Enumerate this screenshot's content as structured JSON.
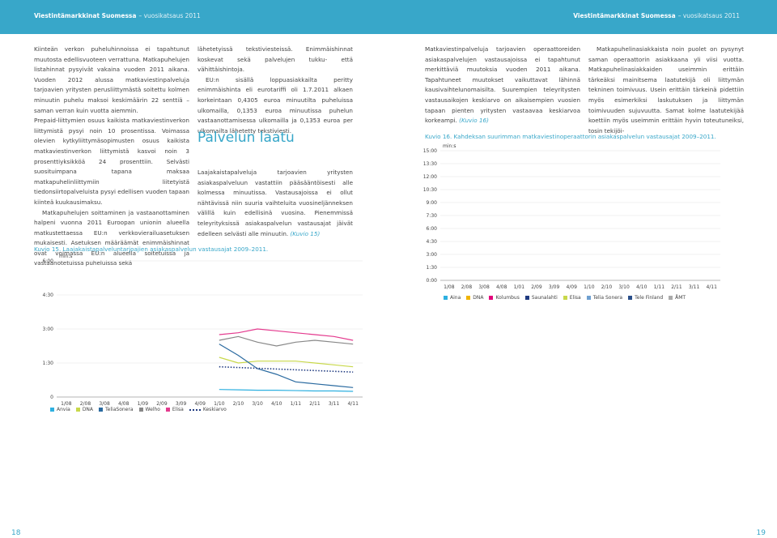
{
  "header": {
    "left_title": "Viestintämarkkinat Suomessa",
    "left_sub": "– vuosikatsaus 2011",
    "right_title": "Viestintämarkkinat Suomessa",
    "right_sub": "– vuosikatsaus 2011"
  },
  "page_left": "18",
  "page_right": "19",
  "col1": [
    "Kiinteän verkon puheluhinnoissa ei tapahtunut muutosta edellisvuoteen verrattuna. Matkapuhelujen listahinnat pysyivät vakaina vuoden 2011 aikana. Vuoden 2012 alussa matkaviestinpalveluja tarjoavien yritysten perusliittymästä soitettu kolmen minuutin puhelu maksoi keskimäärin 22 senttiä – saman verran kuin vuotta aiemmin.",
    "Prepaid-liittymien osuus kaikista matkaviestinverkon liittymistä pysyi noin 10 prosentissa. Voimassa olevien kytkyliittymäsopimusten osuus kaikista matkaviestinverkon liittymistä kasvoi noin 3 prosenttiyksikköä 24 prosenttiin. Selvästi suosituimpana tapana maksaa matkapuhelinliittymiin liitetyistä tiedonsiirtopalveluista pysyi edellisen vuoden tapaan kiinteä kuukausimaksu.",
    "Matkapuhelujen soittaminen ja vastaanottaminen halpeni vuonna 2011 Euroopan unionin alueella matkustettaessa EU:n verkkovierailuasetuksen mukaisesti. Asetuksen määräämät enimmäishinnat ovat voimassa EU:n alueella soitetuissa ja vastaanotetuissa puheluissa sekä"
  ],
  "col2": {
    "p1": "lähetetyissä tekstiviesteissä. Enimmäishinnat koskevat sekä palvelujen tukku- että vähittäishintoja.",
    "p2": "EU:n sisällä loppuasiakkailta peritty enimmäishinta eli eurotariffi oli 1.7.2011 alkaen korkeintaan 0,4305 euroa minuutilta puheluissa ulkomailla, 0,1353 euroa minuutissa puhelun vastaanottamisessa ulkomailla ja 0,1353 euroa per ulkomailta lähetetty tekstiviesti.",
    "section_title": "Palvelun laatu",
    "p3": "Laajakaistapalveluja tarjoavien yritysten asiakaspalveluun vastattiin pääsääntöisesti alle kolmessa minuutissa. Vastausajoissa ei ollut nähtävissä niin suuria vaihteluita vuosineljänneksen välillä kuin edellisinä vuosina. Pienemmissä teleyrityksissä asiakaspalvelun vastausajat jäivät edelleen selvästi alle minuutin.",
    "p3_ref": "(Kuvio 15)"
  },
  "col3": {
    "p1": "Matkaviestinpalveluja tarjoavien operaattoreiden asiakaspalvelujen vastausajoissa ei tapahtunut merkittäviä muutoksia vuoden 2011 aikana. Tapahtuneet muutokset vaikuttavat lähinnä kausivaihtelunomaisilta. Suurempien teleyritysten vastausaikojen keskiarvo on aikaisempien vuosien tapaan pienten yritysten vastaavaa keskiarvoa korkeampi.",
    "p1_ref": "(Kuvio 16)"
  },
  "col4": {
    "p1": "Matkapuhelinasiakkaista noin puolet on pysynyt saman operaattorin asiakkaana yli viisi vuotta. Matkapuhelinasiakkaiden useimmin erittäin tärkeäksi mainitsema laatutekijä oli liittymän tekninen toimivuus. Usein erittäin tärkeinä pidettiin myös esimerkiksi laskutuksen ja liittymän toimivuuden sujuvuutta. Samat kolme laatutekijää koettiin myös useimmin erittäin hyvin toteutuneiksi, tosin tekijöi-"
  },
  "fig15_caption": "Kuvio 15. Laajakaistapalveluntarjoajien asiakaspalvelun vastausajat 2009–2011.",
  "fig16_caption": "Kuvio 16. Kahdeksan suurimman matkaviestinoperaattorin asiakaspalvelun vastausajat 2009–2011.",
  "chart_data": [
    {
      "type": "line",
      "title": "",
      "ylabel": "min:s",
      "yticks": [
        "0",
        "1:30",
        "3:00",
        "4:30",
        "6:00"
      ],
      "ylim": [
        0,
        360
      ],
      "categories": [
        "1/08",
        "2/08",
        "3/08",
        "4/08",
        "1/09",
        "2/09",
        "3/09",
        "4/09",
        "1/10",
        "2/10",
        "3/10",
        "4/10",
        "1/11",
        "2/11",
        "3/11",
        "4/11"
      ],
      "series": [
        {
          "name": "Anvia",
          "color": "#2eb0e0",
          "style": "solid",
          "values": [
            null,
            null,
            null,
            null,
            null,
            null,
            null,
            null,
            20,
            19,
            18,
            18,
            17,
            16,
            16,
            15
          ]
        },
        {
          "name": "DNA",
          "color": "#c8d84a",
          "style": "solid",
          "values": [
            null,
            null,
            null,
            null,
            null,
            null,
            null,
            null,
            105,
            90,
            95,
            95,
            95,
            90,
            85,
            80
          ]
        },
        {
          "name": "TeliaSonera",
          "color": "#2a6aa0",
          "style": "solid",
          "values": [
            null,
            null,
            null,
            null,
            null,
            null,
            null,
            null,
            140,
            110,
            75,
            60,
            40,
            35,
            30,
            25
          ]
        },
        {
          "name": "Welho",
          "color": "#888888",
          "style": "solid",
          "values": [
            null,
            null,
            null,
            null,
            null,
            null,
            null,
            null,
            150,
            160,
            145,
            135,
            145,
            150,
            145,
            140
          ]
        },
        {
          "name": "Elisa",
          "color": "#e43a8e",
          "style": "solid",
          "values": [
            null,
            null,
            null,
            null,
            null,
            null,
            null,
            null,
            165,
            170,
            180,
            175,
            170,
            165,
            160,
            150
          ]
        },
        {
          "name": "Keskiarvo",
          "color": "#1f3a80",
          "style": "dotted",
          "values": [
            null,
            null,
            null,
            null,
            null,
            null,
            null,
            null,
            80,
            78,
            76,
            74,
            72,
            70,
            68,
            66
          ]
        }
      ]
    },
    {
      "type": "line",
      "title": "",
      "ylabel": "min:s",
      "yticks": [
        "0:00",
        "1:30",
        "3:00",
        "4:30",
        "6:00",
        "7:30",
        "9:00",
        "10:30",
        "12:00",
        "13:30",
        "15:00"
      ],
      "ylim": [
        0,
        900
      ],
      "categories": [
        "1/08",
        "2/08",
        "3/08",
        "4/08",
        "1/01",
        "2/09",
        "3/09",
        "4/09",
        "1/10",
        "2/10",
        "3/10",
        "4/10",
        "1/11",
        "2/11",
        "3/11",
        "4/11"
      ],
      "series": [
        {
          "name": "Aina",
          "color": "#2eb0e0",
          "values": [
            null,
            null,
            null,
            null,
            null,
            null,
            null,
            null,
            null,
            null,
            null,
            null,
            null,
            null,
            null,
            null
          ]
        },
        {
          "name": "DNA",
          "color": "#f0b400",
          "values": [
            null,
            null,
            null,
            null,
            null,
            null,
            null,
            null,
            null,
            null,
            null,
            null,
            null,
            null,
            null,
            null
          ]
        },
        {
          "name": "Kolumbus",
          "color": "#e2007a",
          "values": [
            null,
            null,
            null,
            null,
            null,
            null,
            null,
            null,
            null,
            null,
            null,
            null,
            null,
            null,
            null,
            null
          ]
        },
        {
          "name": "Saunalahti",
          "color": "#1f3a80",
          "values": [
            null,
            null,
            null,
            null,
            null,
            null,
            null,
            null,
            null,
            null,
            null,
            null,
            null,
            null,
            null,
            null
          ]
        },
        {
          "name": "Elisa",
          "color": "#c8d84a",
          "values": [
            null,
            null,
            null,
            null,
            null,
            null,
            null,
            null,
            null,
            null,
            null,
            null,
            null,
            null,
            null,
            null
          ]
        },
        {
          "name": "Telia Sonera",
          "color": "#6fa0d0",
          "values": [
            null,
            null,
            null,
            null,
            null,
            null,
            null,
            null,
            null,
            null,
            null,
            null,
            null,
            null,
            null,
            null
          ]
        },
        {
          "name": "Tele Finland",
          "color": "#2a4f8a",
          "values": [
            null,
            null,
            null,
            null,
            null,
            null,
            null,
            null,
            null,
            null,
            null,
            null,
            null,
            null,
            null,
            null
          ]
        },
        {
          "name": "ÅMT",
          "color": "#aaaaaa",
          "values": [
            null,
            null,
            null,
            null,
            null,
            null,
            null,
            null,
            null,
            null,
            null,
            null,
            null,
            null,
            null,
            null
          ]
        }
      ]
    }
  ]
}
